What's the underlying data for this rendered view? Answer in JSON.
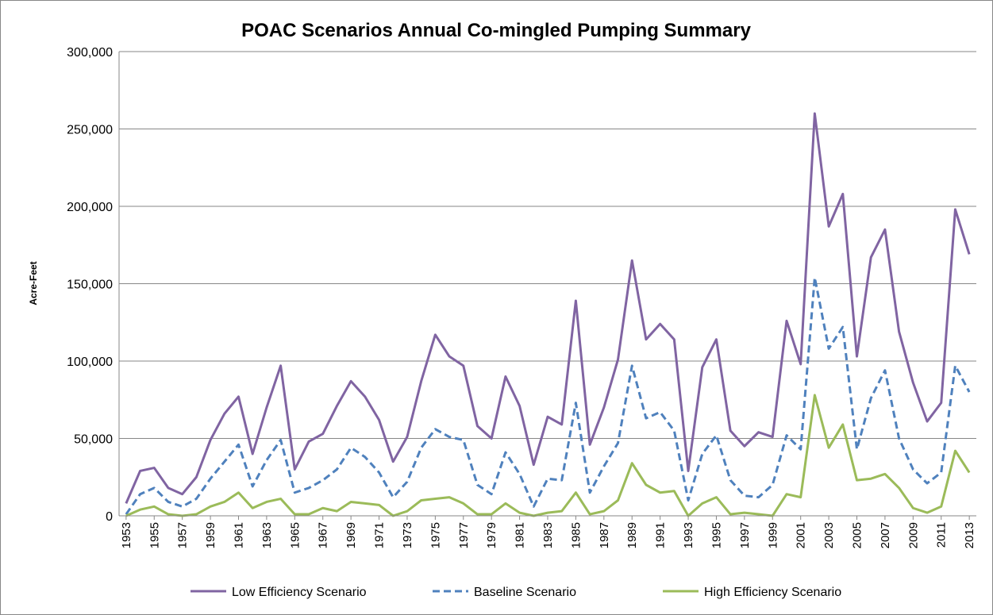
{
  "chart_data": {
    "type": "line",
    "title": "POAC Scenarios Annual Co-mingled Pumping Summary",
    "y_label": "Acre-Feet",
    "x": [
      1953,
      1954,
      1955,
      1956,
      1957,
      1958,
      1959,
      1960,
      1961,
      1962,
      1963,
      1964,
      1965,
      1966,
      1967,
      1968,
      1969,
      1970,
      1971,
      1972,
      1973,
      1974,
      1975,
      1976,
      1977,
      1978,
      1979,
      1980,
      1981,
      1982,
      1983,
      1984,
      1985,
      1986,
      1987,
      1988,
      1989,
      1990,
      1991,
      1992,
      1993,
      1994,
      1995,
      1996,
      1997,
      1998,
      1999,
      2000,
      2001,
      2002,
      2003,
      2004,
      2005,
      2006,
      2007,
      2008,
      2009,
      2010,
      2011,
      2012,
      2013
    ],
    "xlim": [
      1952.5,
      2013.5
    ],
    "xticks": [
      1953,
      1955,
      1957,
      1959,
      1961,
      1963,
      1965,
      1967,
      1969,
      1971,
      1973,
      1975,
      1977,
      1979,
      1981,
      1983,
      1985,
      1987,
      1989,
      1991,
      1993,
      1995,
      1997,
      1999,
      2001,
      2003,
      2005,
      2007,
      2009,
      2011,
      2013
    ],
    "ylim": [
      0,
      300000
    ],
    "yticks": [
      0,
      {
        "value": 50000,
        "label": "50,000"
      },
      {
        "value": 100000,
        "label": "100,000"
      },
      {
        "value": 150000,
        "label": "150,000"
      },
      {
        "value": 200000,
        "label": "200,000"
      },
      {
        "value": 250000,
        "label": "250,000"
      },
      {
        "value": 300000,
        "label": "300,000"
      }
    ],
    "grid": true,
    "legend": "bottom",
    "series": [
      {
        "name": "Low Efficiency Scenario",
        "color": "#8064a2",
        "line_style": "solid",
        "values": [
          8000,
          29000,
          31000,
          18000,
          14000,
          25000,
          49000,
          66000,
          77000,
          40000,
          70000,
          97000,
          30000,
          48000,
          53000,
          71000,
          87000,
          77000,
          62000,
          35000,
          51000,
          87000,
          117000,
          103000,
          97000,
          58000,
          50000,
          90000,
          71000,
          33000,
          64000,
          59000,
          139000,
          46000,
          70000,
          101000,
          165000,
          114000,
          124000,
          114000,
          29000,
          96000,
          114000,
          55000,
          45000,
          54000,
          51000,
          126000,
          98000,
          260000,
          187000,
          208000,
          103000,
          167000,
          185000,
          119000,
          86000,
          61000,
          73000,
          198000,
          169000
        ]
      },
      {
        "name": "Baseline Scenario",
        "color": "#4f81bd",
        "line_style": "dashed",
        "values": [
          1000,
          14000,
          18000,
          9000,
          6000,
          11000,
          24000,
          35000,
          46000,
          19000,
          36000,
          49000,
          15000,
          18000,
          23000,
          30000,
          44000,
          38000,
          28000,
          12000,
          22000,
          44000,
          56000,
          51000,
          49000,
          20000,
          14000,
          41000,
          27000,
          6000,
          24000,
          23000,
          73000,
          15000,
          32000,
          47000,
          97000,
          63000,
          67000,
          55000,
          10000,
          40000,
          52000,
          23000,
          13000,
          12000,
          20000,
          52000,
          43000,
          154000,
          108000,
          122000,
          43000,
          76000,
          94000,
          50000,
          30000,
          21000,
          28000,
          97000,
          80000
        ]
      },
      {
        "name": "High Efficiency Scenario",
        "color": "#9bbb59",
        "line_style": "solid",
        "values": [
          0,
          4000,
          6000,
          1000,
          0,
          1000,
          6000,
          9000,
          15000,
          5000,
          9000,
          11000,
          1000,
          1000,
          5000,
          3000,
          9000,
          8000,
          7000,
          0,
          3000,
          10000,
          11000,
          12000,
          8000,
          1000,
          1000,
          8000,
          2000,
          0,
          2000,
          3000,
          15000,
          1000,
          3000,
          10000,
          34000,
          20000,
          15000,
          16000,
          0,
          8000,
          12000,
          1000,
          2000,
          1000,
          0,
          14000,
          12000,
          78000,
          44000,
          59000,
          23000,
          24000,
          27000,
          18000,
          5000,
          2000,
          6000,
          42000,
          28000
        ]
      }
    ]
  }
}
